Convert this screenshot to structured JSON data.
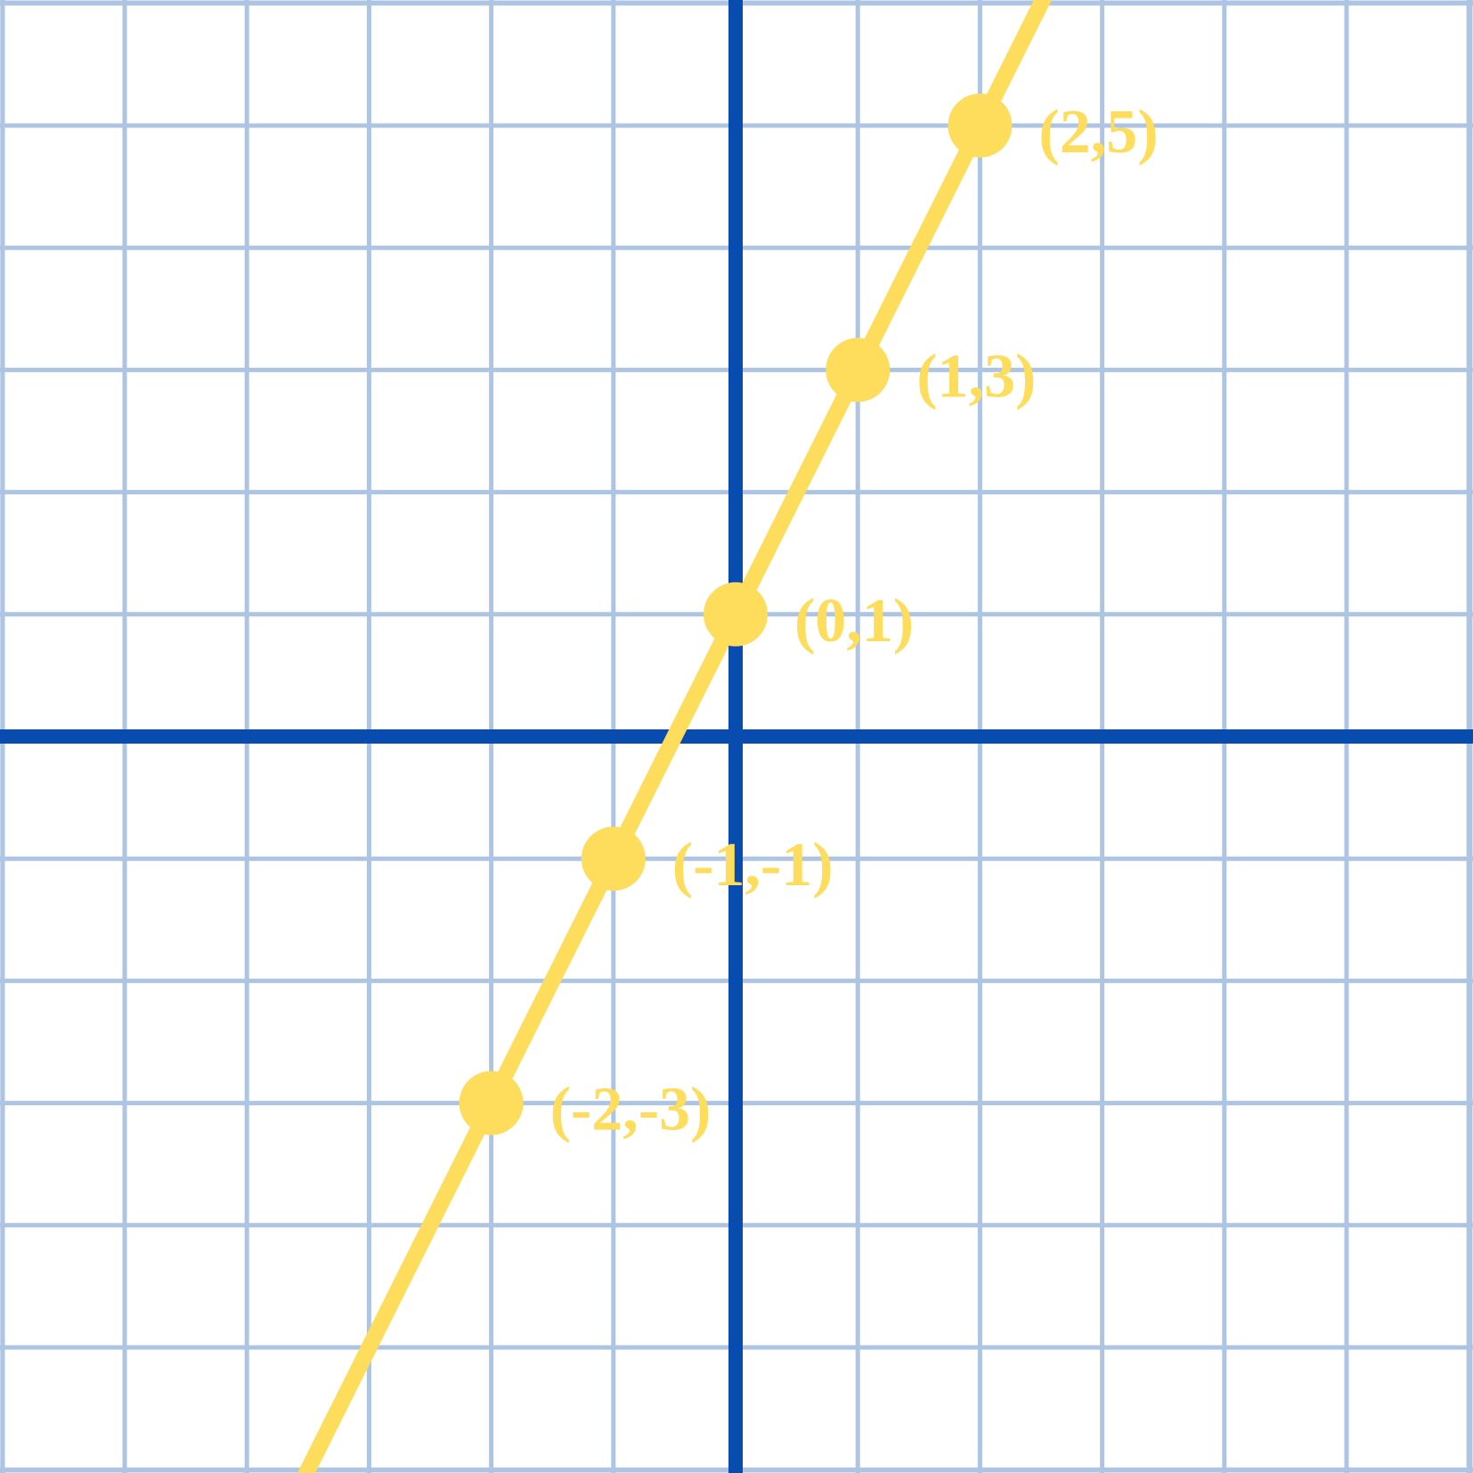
{
  "chart_data": {
    "type": "line",
    "title": "",
    "xlabel": "",
    "ylabel": "",
    "xlim": [
      -6,
      6
    ],
    "ylim": [
      -6,
      6
    ],
    "grid": true,
    "grid_step": 1,
    "series": [
      {
        "values": [
          {
            "x": -2,
            "y": -3,
            "label": "(-2,-3)"
          },
          {
            "x": -1,
            "y": -1,
            "label": "(-1,-1)"
          },
          {
            "x": 0,
            "y": 1,
            "label": "(0,1)"
          },
          {
            "x": 1,
            "y": 3,
            "label": "(1,3)"
          },
          {
            "x": 2,
            "y": 5,
            "label": "(2,5)"
          }
        ],
        "line": {
          "slope": 2,
          "intercept": 1
        }
      }
    ],
    "colors": {
      "grid": "#adc4e3",
      "axes": "#084cb0",
      "series": "#fddd5b",
      "background": "#ffffff"
    }
  }
}
